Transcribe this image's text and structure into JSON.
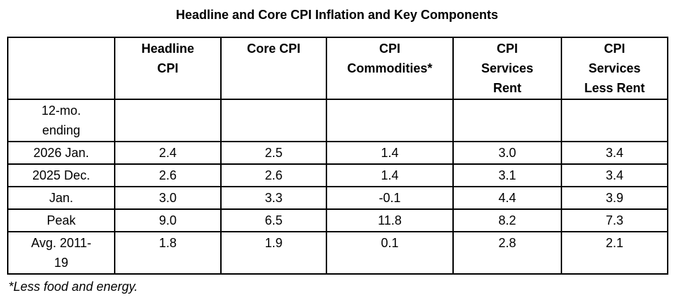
{
  "chart_data": {
    "type": "table",
    "title": "Headline and Core CPI Inflation and Key Components",
    "columns": [
      "",
      "Headline\nCPI",
      "Core CPI",
      "CPI\nCommodities*",
      "CPI\nServices\nRent",
      "CPI\nServices\nLess Rent"
    ],
    "rows": [
      {
        "label": "12-mo.\nending",
        "values": [
          "",
          "",
          "",
          "",
          ""
        ]
      },
      {
        "label": "2026 Jan.",
        "values": [
          "2.4",
          "2.5",
          "1.4",
          "3.0",
          "3.4"
        ]
      },
      {
        "label": "2025 Dec.",
        "values": [
          "2.6",
          "2.6",
          "1.4",
          "3.1",
          "3.4"
        ]
      },
      {
        "label": "Jan.",
        "values": [
          "3.0",
          "3.3",
          "-0.1",
          "4.4",
          "3.9"
        ]
      },
      {
        "label": "Peak",
        "values": [
          "9.0",
          "6.5",
          "11.8",
          "8.2",
          "7.3"
        ]
      },
      {
        "label": "Avg. 2011-\n19",
        "values": [
          "1.8",
          "1.9",
          "0.1",
          "2.8",
          "2.1"
        ]
      }
    ],
    "footnote": "*Less food and energy.",
    "colors": {
      "text": "#000000",
      "border": "#000000",
      "background": "#ffffff"
    }
  }
}
